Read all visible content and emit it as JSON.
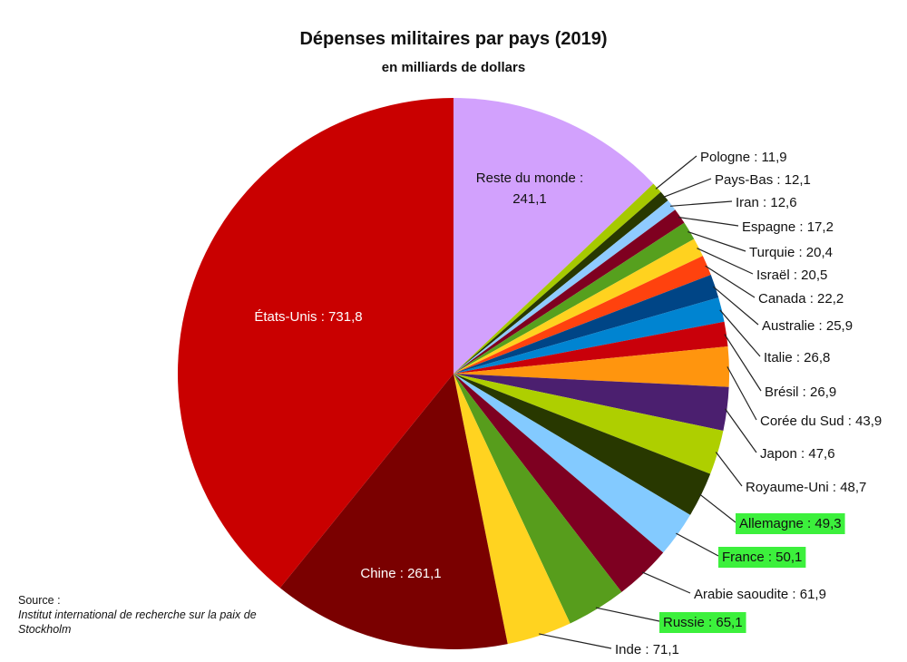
{
  "chart_data": {
    "type": "pie",
    "title": "Dépenses militaires par pays (2019)",
    "subtitle": "en milliards de dollars",
    "unit": "milliards de dollars",
    "start": "top",
    "direction": "clockwise",
    "slices": [
      {
        "label": "Reste du monde",
        "value": 241.1,
        "display": "241,1",
        "color": "#d2a1fd",
        "highlight": false
      },
      {
        "label": "Pologne",
        "value": 11.9,
        "display": "11,9",
        "color": "#a6c900",
        "highlight": false
      },
      {
        "label": "Pays-Bas",
        "value": 12.1,
        "display": "12,1",
        "color": "#283800",
        "highlight": false
      },
      {
        "label": "Iran",
        "value": 12.6,
        "display": "12,6",
        "color": "#8fcbff",
        "highlight": false
      },
      {
        "label": "Espagne",
        "value": 17.2,
        "display": "17,2",
        "color": "#7f0020",
        "highlight": false
      },
      {
        "label": "Turquie",
        "value": 20.4,
        "display": "20,4",
        "color": "#56a01e",
        "highlight": false
      },
      {
        "label": "Israël",
        "value": 20.5,
        "display": "20,5",
        "color": "#ffd21f",
        "highlight": false
      },
      {
        "label": "Canada",
        "value": 22.2,
        "display": "22,2",
        "color": "#ff420e",
        "highlight": false
      },
      {
        "label": "Australie",
        "value": 25.9,
        "display": "25,9",
        "color": "#004586",
        "highlight": false
      },
      {
        "label": "Italie",
        "value": 26.8,
        "display": "26,8",
        "color": "#0084d1",
        "highlight": false
      },
      {
        "label": "Brésil",
        "value": 26.9,
        "display": "26,9",
        "color": "#c9000a",
        "highlight": false
      },
      {
        "label": "Corée du Sud",
        "value": 43.9,
        "display": "43,9",
        "color": "#ff950e",
        "highlight": false
      },
      {
        "label": "Japon",
        "value": 47.6,
        "display": "47,6",
        "color": "#4b1f6f",
        "highlight": false
      },
      {
        "label": "Royaume-Uni",
        "value": 48.7,
        "display": "48,7",
        "color": "#aecf00",
        "highlight": false
      },
      {
        "label": "Allemagne",
        "value": 49.3,
        "display": "49,3",
        "color": "#283800",
        "highlight": true
      },
      {
        "label": "France",
        "value": 50.1,
        "display": "50,1",
        "color": "#83caff",
        "highlight": true
      },
      {
        "label": "Arabie saoudite",
        "value": 61.9,
        "display": "61,9",
        "color": "#7e0021",
        "highlight": false
      },
      {
        "label": "Russie",
        "value": 65.1,
        "display": "65,1",
        "color": "#579d1c",
        "highlight": true
      },
      {
        "label": "Inde",
        "value": 71.1,
        "display": "71,1",
        "color": "#ffd320",
        "highlight": false
      },
      {
        "label": "Chine",
        "value": 261.1,
        "display": "261,1",
        "color": "#7a0000",
        "highlight": false
      },
      {
        "label": "États-Unis",
        "value": 731.8,
        "display": "731,8",
        "color": "#c90000",
        "highlight": false
      }
    ],
    "highlight_color": "#3cf03c"
  },
  "source": {
    "label": "Source :",
    "text": "Institut international de recherche sur la paix de Stockholm"
  }
}
